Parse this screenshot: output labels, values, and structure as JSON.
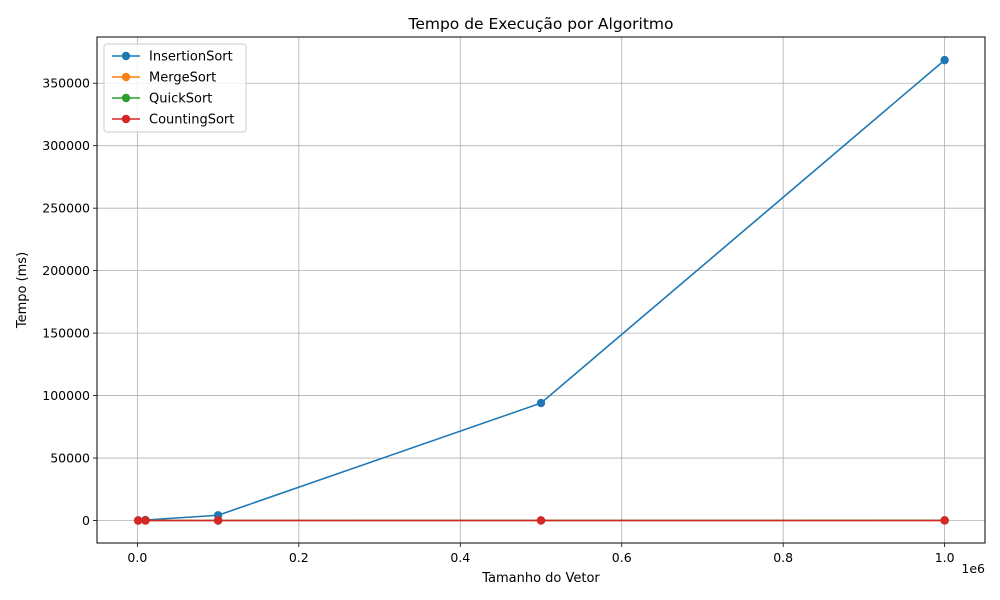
{
  "chart_data": {
    "type": "line",
    "title": "Tempo de Execução por Algoritmo",
    "xlabel": "Tamanho do Vetor",
    "ylabel": "Tempo (ms)",
    "x_offset_label": "1e6",
    "x": [
      1000,
      10000,
      100000,
      500000,
      1000000
    ],
    "xlim": [
      -0.05,
      1.05
    ],
    "ylim": [
      -18000,
      387000
    ],
    "x_tick_values": [
      0.0,
      0.2,
      0.4,
      0.6,
      0.8,
      1.0
    ],
    "x_tick_labels": [
      "0.0",
      "0.2",
      "0.4",
      "0.6",
      "0.8",
      "1.0"
    ],
    "y_tick_values": [
      0,
      50000,
      100000,
      150000,
      200000,
      250000,
      300000,
      350000
    ],
    "y_tick_labels": [
      "0",
      "50000",
      "100000",
      "150000",
      "200000",
      "250000",
      "300000",
      "350000"
    ],
    "grid": true,
    "legend_position": "upper-left",
    "series": [
      {
        "name": "InsertionSort",
        "color": "#1f77b4",
        "values": [
          30,
          400,
          4200,
          94000,
          368500
        ]
      },
      {
        "name": "MergeSort",
        "color": "#ff7f0e",
        "values": [
          0,
          1,
          10,
          60,
          130
        ]
      },
      {
        "name": "QuickSort",
        "color": "#2ca02c",
        "values": [
          0,
          1,
          8,
          50,
          110
        ]
      },
      {
        "name": "CountingSort",
        "color": "#d62728",
        "values": [
          0,
          0,
          2,
          10,
          20
        ]
      }
    ]
  }
}
